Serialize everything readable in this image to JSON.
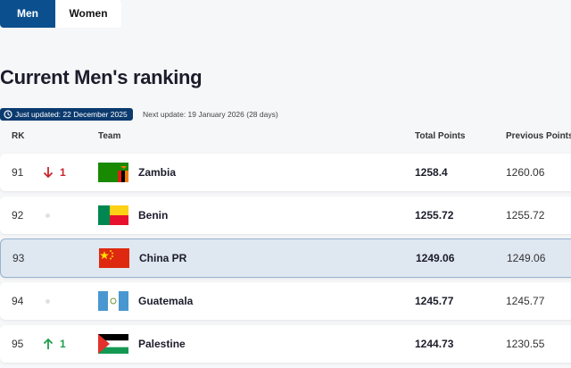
{
  "tabs": [
    "Men",
    "Women"
  ],
  "title": "Current Men's ranking",
  "updates": {
    "last": "Just updated: 22 December 2025",
    "next": "Next update: 19 January 2026 (28 days)"
  },
  "table": {
    "headers": [
      "RK",
      "Team",
      "Total Points",
      "Previous Points"
    ],
    "rows": [
      {
        "rank": "91",
        "change": "1",
        "team": "Zambia",
        "total": "1258.4",
        "previous": "1260.06"
      },
      {
        "rank": "92",
        "team": "Benin",
        "total": "1255.72",
        "previous": "1255.72"
      },
      {
        "rank": "93",
        "team": "China PR",
        "total": "1249.06",
        "previous": "1249.06"
      },
      {
        "rank": "94",
        "team": "Guatemala",
        "total": "1245.77",
        "previous": "1245.77"
      },
      {
        "rank": "95",
        "change": "1",
        "team": "Palestine",
        "total": "1244.73",
        "previous": "1230.55"
      }
    ]
  }
}
